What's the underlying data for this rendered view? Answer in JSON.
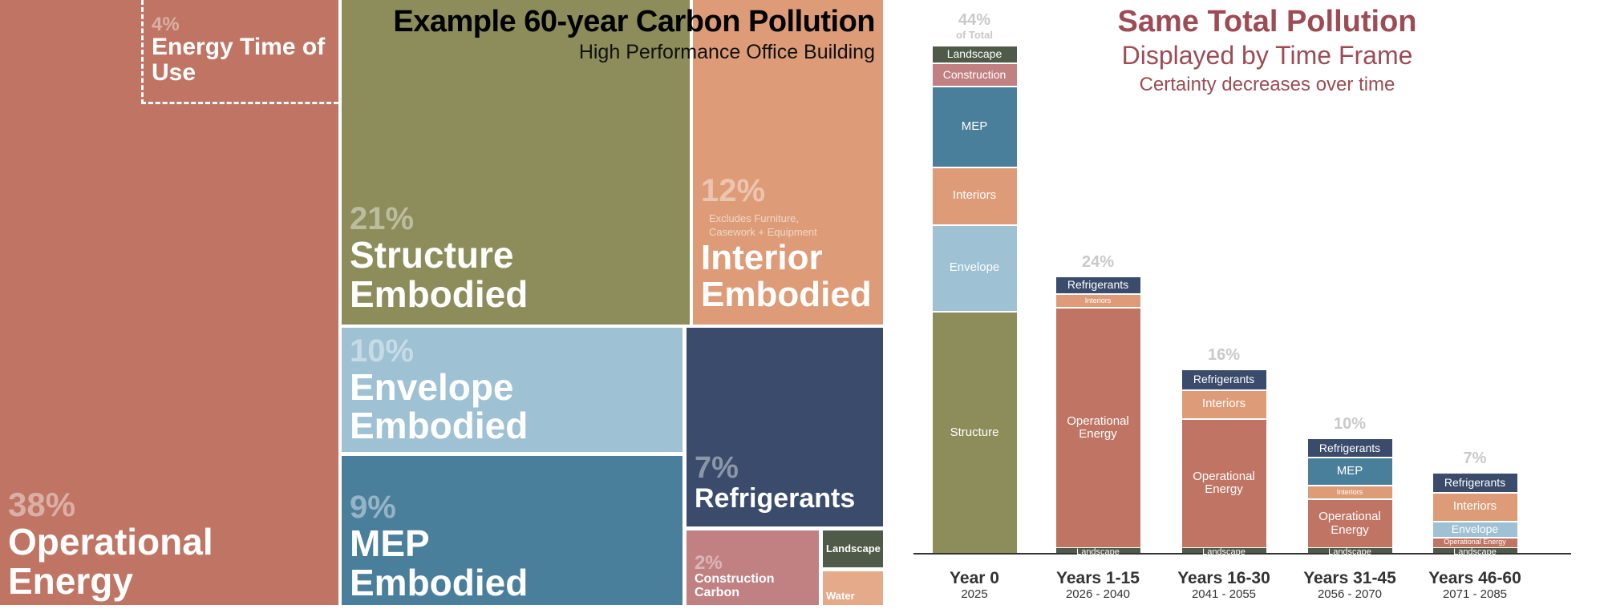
{
  "chart_data": [
    {
      "type": "treemap",
      "title": "Example 60-year Carbon Pollution",
      "subtitle": "High Performance Office Building",
      "categories": [
        "Operational Energy",
        "Energy Time of Use",
        "Structure Embodied",
        "Interior Embodied",
        "Envelope Embodied",
        "Refrigerants",
        "MEP Embodied",
        "Construction Carbon",
        "Landscape",
        "Water"
      ],
      "values": [
        38,
        4,
        21,
        12,
        10,
        7,
        9,
        2,
        0.5,
        0.5
      ],
      "value_labels": [
        "38%",
        "4%",
        "21%",
        "12%",
        "10%",
        "7%",
        "9%",
        "2%",
        null,
        null
      ],
      "colors": [
        "#c07564",
        "#c07564",
        "#8c8d5a",
        "#dd9c77",
        "#9ec1d4",
        "#3a4b6b",
        "#4a7f9c",
        "#c18183",
        "#4f5a48",
        "#e5aa89"
      ],
      "annotation": "Excludes Furniture, Casework + Equipment"
    },
    {
      "type": "stacked_bar",
      "title": "Same Total Pollution",
      "subtitle": "Displayed by Time Frame",
      "note": "Certainty decreases over time",
      "categories": [
        "Year 0",
        "Years 1-15",
        "Years 16-30",
        "Years 31-45",
        "Years 46-60"
      ],
      "category_sublabels": [
        "2025",
        "2026 - 2040",
        "2041 - 2055",
        "2056 - 2070",
        "2071 - 2085"
      ],
      "totals": [
        44,
        24,
        16,
        10,
        7
      ],
      "total_labels": [
        "44%",
        "24%",
        "16%",
        "10%",
        "7%"
      ],
      "total_annotation": "of Total",
      "series": [
        {
          "name": "Landscape",
          "color": "#4f5a48",
          "values": [
            null,
            0.5,
            0.5,
            0.5,
            0.5
          ]
        },
        {
          "name": "Structure",
          "color": "#8c8d5a",
          "values": [
            21,
            null,
            null,
            null,
            null
          ]
        },
        {
          "name": "Operational Energy",
          "color": "#c07564",
          "values": [
            null,
            20.8,
            11.2,
            4.2,
            0.9
          ]
        },
        {
          "name": "Envelope",
          "color": "#9ec1d4",
          "values": [
            7.5,
            null,
            null,
            null,
            1.4
          ]
        },
        {
          "name": "Interiors",
          "color": "#dd9c77",
          "values": [
            5,
            1.2,
            2.5,
            1.2,
            2.5
          ]
        },
        {
          "name": "MEP",
          "color": "#4a7f9c",
          "values": [
            7,
            null,
            null,
            2.4,
            null
          ]
        },
        {
          "name": "Construction",
          "color": "#c18183",
          "values": [
            2,
            null,
            null,
            null,
            null
          ]
        },
        {
          "name": "Landscape",
          "color": "#4f5a48",
          "values": [
            1.5,
            null,
            null,
            null,
            null
          ]
        },
        {
          "name": "Refrigerants",
          "color": "#3a4b6b",
          "values": [
            null,
            1.5,
            1.8,
            1.7,
            1.7
          ]
        }
      ]
    }
  ]
}
